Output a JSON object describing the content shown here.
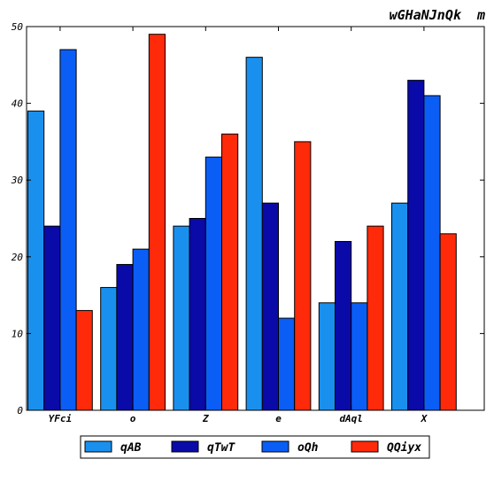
{
  "chart_data": {
    "type": "bar",
    "title": "wGHaNJnQk  m",
    "categories": [
      "YFci",
      "o",
      "Z",
      "e",
      "dAql",
      "X"
    ],
    "series": [
      {
        "name": "qAB",
        "color": "#1a90ee",
        "values": [
          39,
          16,
          24,
          46,
          14,
          27
        ]
      },
      {
        "name": "qTwT",
        "color": "#0a0aa8",
        "values": [
          24,
          19,
          25,
          27,
          22,
          43
        ]
      },
      {
        "name": "oQh",
        "color": "#0b5ef5",
        "values": [
          47,
          21,
          33,
          12,
          14,
          41
        ]
      },
      {
        "name": "QQiyx",
        "color": "#ff2a0a",
        "values": [
          13,
          49,
          36,
          35,
          24,
          23
        ]
      }
    ],
    "yticks": [
      "0",
      "10",
      "20",
      "30",
      "40",
      "50"
    ],
    "ylim": [
      0,
      50
    ],
    "xlabel": "",
    "ylabel": "",
    "legend_position": "bottom-center",
    "grid": false
  }
}
